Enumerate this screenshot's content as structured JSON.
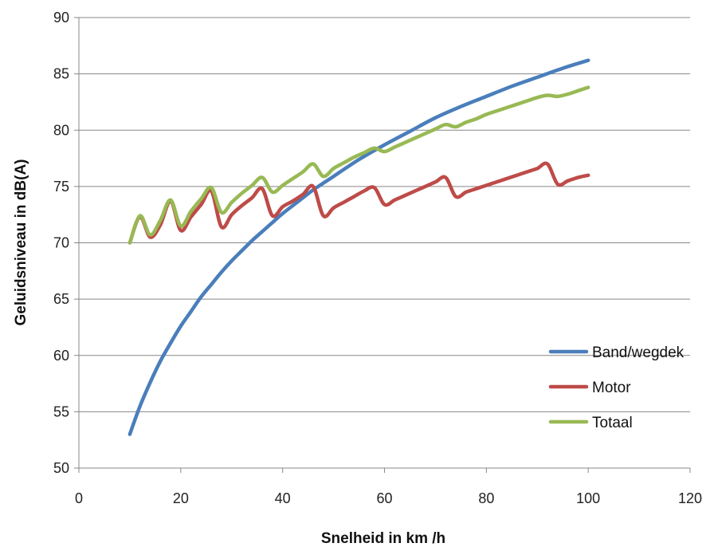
{
  "chart_data": {
    "type": "line",
    "title": "",
    "xlabel": "Snelheid in km /h",
    "ylabel": "Geluidsniveau  in dB(A)",
    "xlim": [
      0,
      120
    ],
    "ylim": [
      50,
      90
    ],
    "xticks": [
      "0",
      "20",
      "40",
      "60",
      "80",
      "100",
      "120"
    ],
    "yticks": [
      "50",
      "55",
      "60",
      "65",
      "70",
      "75",
      "80",
      "85",
      "90"
    ],
    "grid": "horizontal",
    "legend_position": "bottom-right",
    "series": [
      {
        "name": "Band/wegdek",
        "color": "#4a7ebb",
        "x": [
          10,
          12,
          14,
          16,
          18,
          20,
          22,
          24,
          26,
          28,
          30,
          32,
          34,
          36,
          38,
          40,
          42,
          44,
          46,
          48,
          50,
          55,
          60,
          65,
          70,
          75,
          80,
          85,
          90,
          95,
          100
        ],
        "y": [
          53.0,
          55.5,
          57.6,
          59.5,
          61.1,
          62.6,
          63.9,
          65.2,
          66.3,
          67.4,
          68.4,
          69.3,
          70.2,
          71.0,
          71.8,
          72.6,
          73.3,
          74.0,
          74.7,
          75.3,
          75.9,
          77.4,
          78.7,
          79.9,
          81.1,
          82.1,
          83.0,
          83.9,
          84.7,
          85.5,
          86.2
        ]
      },
      {
        "name": "Motor",
        "color": "#be4b48",
        "x": [
          10,
          12,
          14,
          16,
          18,
          20,
          22,
          24,
          26,
          28,
          30,
          32,
          34,
          36,
          38,
          40,
          42,
          44,
          46,
          48,
          50,
          52,
          54,
          56,
          58,
          60,
          62,
          64,
          66,
          68,
          70,
          72,
          74,
          76,
          78,
          80,
          82,
          84,
          86,
          88,
          90,
          92,
          94,
          96,
          98,
          100
        ],
        "y": [
          70.0,
          72.3,
          70.5,
          71.6,
          73.7,
          71.1,
          72.3,
          73.4,
          74.6,
          71.4,
          72.5,
          73.3,
          74.0,
          74.8,
          72.4,
          73.2,
          73.7,
          74.3,
          75.0,
          72.4,
          73.1,
          73.6,
          74.1,
          74.6,
          74.9,
          73.4,
          73.8,
          74.2,
          74.6,
          75.0,
          75.4,
          75.8,
          74.1,
          74.5,
          74.8,
          75.1,
          75.4,
          75.7,
          76.0,
          76.3,
          76.6,
          77.0,
          75.2,
          75.5,
          75.8,
          76.0
        ]
      },
      {
        "name": "Totaal",
        "color": "#98b954",
        "x": [
          10,
          12,
          14,
          16,
          18,
          20,
          22,
          24,
          26,
          28,
          30,
          32,
          34,
          36,
          38,
          40,
          42,
          44,
          46,
          48,
          50,
          52,
          54,
          56,
          58,
          60,
          62,
          64,
          66,
          68,
          70,
          72,
          74,
          76,
          78,
          80,
          82,
          84,
          86,
          88,
          90,
          92,
          94,
          96,
          98,
          100
        ],
        "y": [
          70.0,
          72.4,
          70.7,
          72.0,
          73.8,
          71.5,
          72.8,
          73.9,
          74.9,
          72.7,
          73.6,
          74.4,
          75.1,
          75.8,
          74.5,
          75.1,
          75.7,
          76.3,
          77.0,
          75.9,
          76.6,
          77.1,
          77.6,
          78.0,
          78.4,
          78.1,
          78.5,
          78.9,
          79.3,
          79.7,
          80.1,
          80.5,
          80.3,
          80.7,
          81.0,
          81.4,
          81.7,
          82.0,
          82.3,
          82.6,
          82.9,
          83.1,
          83.0,
          83.2,
          83.5,
          83.8
        ]
      }
    ]
  }
}
